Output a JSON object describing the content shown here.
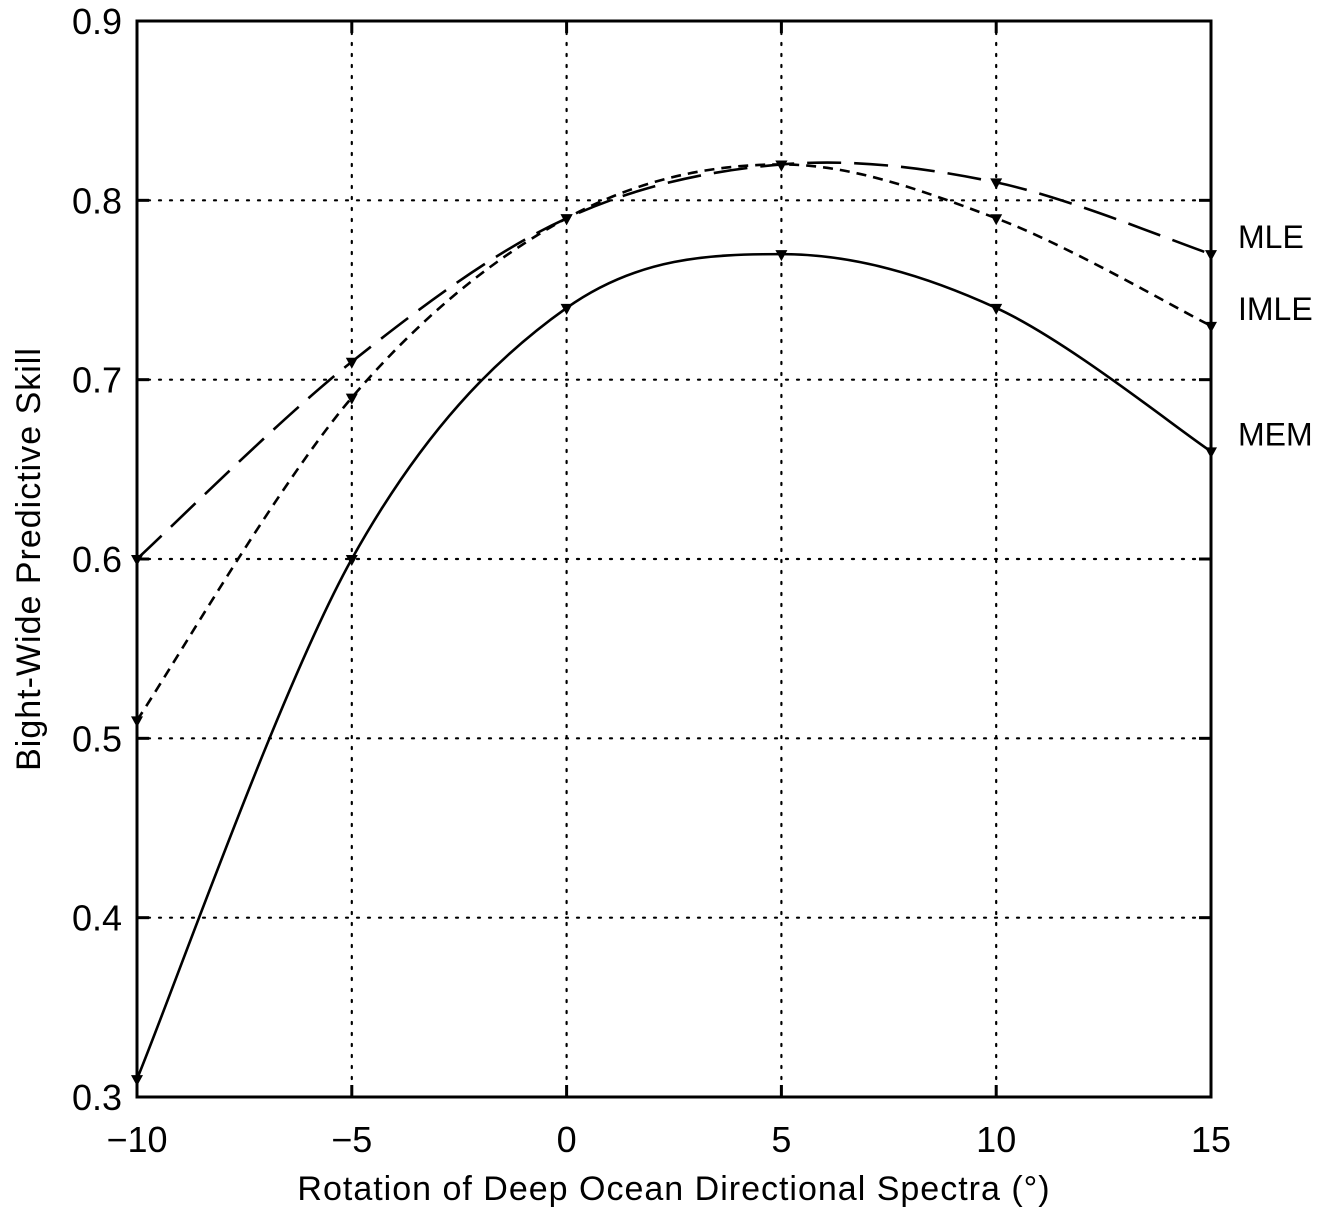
{
  "chart_data": {
    "type": "line",
    "title": "",
    "xlabel": "Rotation of Deep Ocean Directional Spectra (°)",
    "ylabel": "Bight-Wide Predictive Skill",
    "xlim": [
      -10,
      15
    ],
    "ylim": [
      0.3,
      0.9
    ],
    "xticks": [
      -10,
      -5,
      0,
      5,
      10,
      15
    ],
    "xtick_labels": [
      "−10",
      "−5",
      "0",
      "5",
      "10",
      "15"
    ],
    "yticks": [
      0.3,
      0.4,
      0.5,
      0.6,
      0.7,
      0.8,
      0.9
    ],
    "ytick_labels": [
      "0.3",
      "0.4",
      "0.5",
      "0.6",
      "0.7",
      "0.8",
      "0.9"
    ],
    "grid": true,
    "legend": "end-of-line labels on right",
    "x": [
      -10,
      -5,
      0,
      5,
      10,
      15
    ],
    "series": [
      {
        "name": "MLE",
        "line_style": "long-dash",
        "values": [
          0.6,
          0.71,
          0.79,
          0.82,
          0.81,
          0.77
        ]
      },
      {
        "name": "IMLE",
        "line_style": "short-dash",
        "values": [
          0.51,
          0.69,
          0.79,
          0.82,
          0.79,
          0.73
        ]
      },
      {
        "name": "MEM",
        "line_style": "solid",
        "values": [
          0.31,
          0.6,
          0.74,
          0.77,
          0.74,
          0.66
        ]
      }
    ]
  }
}
